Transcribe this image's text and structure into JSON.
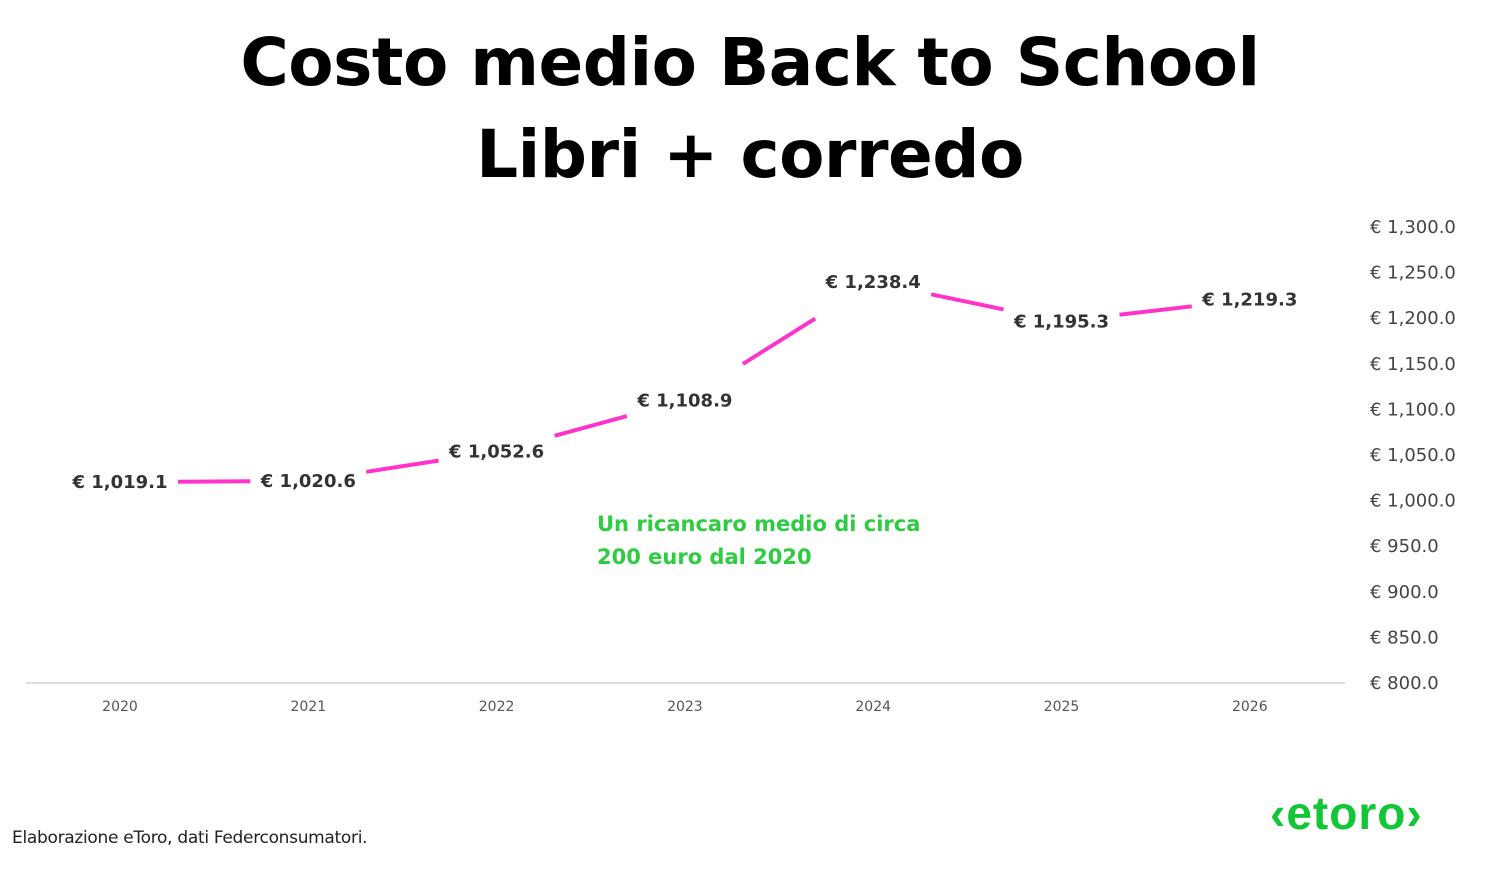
{
  "header": {
    "title_line1": "Costo medio Back to School",
    "title_line2": "Libri + corredo"
  },
  "chart_data": {
    "type": "line",
    "title": "Costo medio Back to School Libri + corredo",
    "x": [
      "2020",
      "2021",
      "2022",
      "2023",
      "2024",
      "2025",
      "2026"
    ],
    "series": [
      {
        "values": [
          1019.1,
          1020.6,
          1052.6,
          1108.9,
          1238.4,
          1195.3,
          1219.3
        ],
        "labels": [
          "€ 1,019.1",
          "€ 1,020.6",
          "€ 1,052.6",
          "€ 1,108.9",
          "€ 1,238.4",
          "€ 1,195.3",
          "€ 1,219.3"
        ],
        "color": "#ff33cc"
      }
    ],
    "ylim": [
      800,
      1300
    ],
    "y_ticks": [
      1300,
      1250,
      1200,
      1150,
      1100,
      1050,
      1000,
      950,
      900,
      850,
      800
    ],
    "y_tick_labels": [
      "€ 1,300.0",
      "€ 1,250.0",
      "€ 1,200.0",
      "€ 1,150.0",
      "€ 1,100.0",
      "€ 1,050.0",
      "€ 1,000.0",
      "€ 950.0",
      "€ 900.0",
      "€ 850.0",
      "€ 800.0"
    ],
    "y_axis_position": "right",
    "grid": false,
    "annotation": {
      "line1": "Un ricancaro medio di circa",
      "line2": "200 euro dal 2020",
      "color": "#2ecc40"
    }
  },
  "footer": {
    "source": "Elaborazione eToro, dati Federconsumatori.",
    "logo_text": "‹etoro›",
    "logo_color": "#13c636"
  }
}
